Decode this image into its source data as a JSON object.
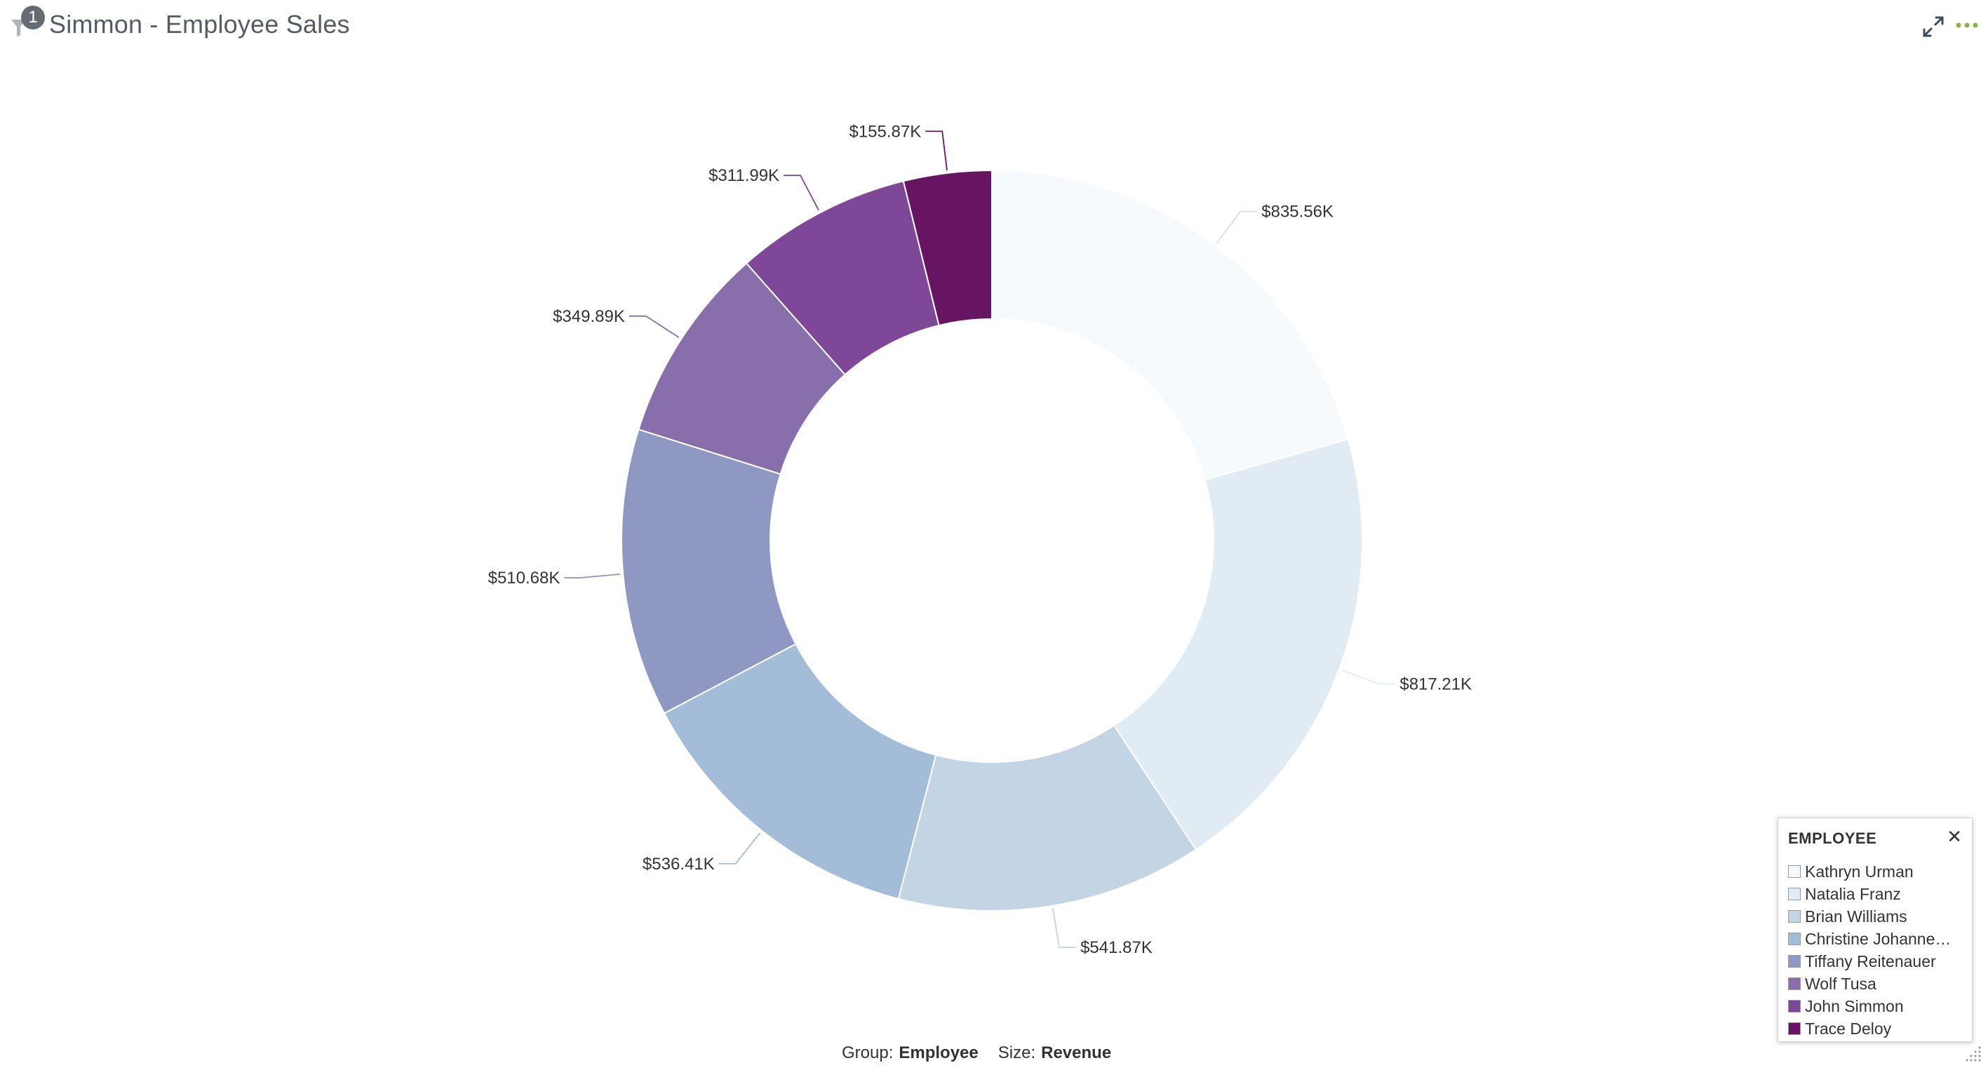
{
  "header": {
    "title": "Simmon - Employee Sales",
    "filter_count": "1"
  },
  "icons": {
    "filter": "filter-icon",
    "expand": "expand-icon",
    "more": "more-options-icon",
    "close": "close-icon",
    "resize": "resize-grip-icon"
  },
  "colors": {
    "accent_green": "#8ab34a",
    "icon_grey": "#3f4a5a"
  },
  "chart_data": {
    "type": "pie",
    "variant": "donut",
    "categories": [
      "Kathryn Urman",
      "Natalia Franz",
      "Brian Williams",
      "Christine Johannesen",
      "Tiffany Reitenauer",
      "Wolf Tusa",
      "John Simmon",
      "Trace Deloy"
    ],
    "values": [
      835.56,
      817.21,
      541.87,
      536.41,
      510.68,
      349.89,
      311.99,
      155.87
    ],
    "data_labels": [
      "$835.56K",
      "$817.21K",
      "$541.87K",
      "$536.41K",
      "$510.68K",
      "$349.89K",
      "$311.99K",
      "$155.87K"
    ],
    "colors": [
      "#f7fafc",
      "#e1ebf3",
      "#c3d4e5",
      "#a3bcd8",
      "#8e98c2",
      "#886fac",
      "#7e4798",
      "#671463"
    ],
    "unit": "$K",
    "legend_position": "bottom-right"
  },
  "legend": {
    "title": "EMPLOYEE",
    "items": [
      "Kathryn Urman",
      "Natalia Franz",
      "Brian Williams",
      "Christine Johanne…",
      "Tiffany Reitenauer",
      "Wolf Tusa",
      "John Simmon",
      "Trace Deloy"
    ]
  },
  "footer": {
    "group_label": "Group:",
    "group_value": "Employee",
    "size_label": "Size:",
    "size_value": "Revenue"
  }
}
